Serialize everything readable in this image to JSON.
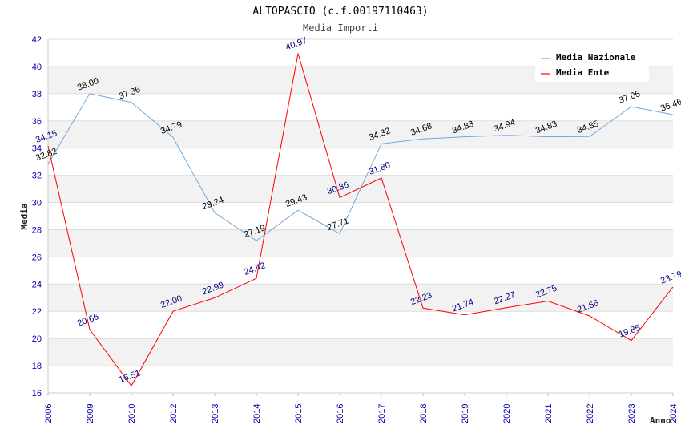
{
  "chart_data": {
    "type": "line",
    "title": "ALTOPASCIO (c.f.00197110463)",
    "subtitle": "Media Importi",
    "xlabel": "Anno",
    "ylabel": "Media",
    "ylim": [
      16,
      42
    ],
    "yticks": [
      "16",
      "18",
      "20",
      "22",
      "24",
      "26",
      "28",
      "30",
      "32",
      "34",
      "36",
      "38",
      "40",
      "42"
    ],
    "categories": [
      "2006",
      "2009",
      "2010",
      "2012",
      "2013",
      "2014",
      "2015",
      "2016",
      "2017",
      "2018",
      "2019",
      "2020",
      "2021",
      "2022",
      "2023",
      "2024"
    ],
    "legend_position": "top-right",
    "series": [
      {
        "name": "Media Nazionale",
        "color": "#6fa8dc",
        "values": [
          32.82,
          38.0,
          37.36,
          34.79,
          29.24,
          27.19,
          29.43,
          27.71,
          34.32,
          34.68,
          34.83,
          34.94,
          34.83,
          34.85,
          37.05,
          36.46
        ],
        "labels": [
          "32.82",
          "38.00",
          "37.36",
          "34.79",
          "29.24",
          "27.19",
          "29.43",
          "27.71",
          "34.32",
          "34.68",
          "34.83",
          "34.94",
          "34.83",
          "34.85",
          "37.05",
          "36.46"
        ]
      },
      {
        "name": "Media Ente",
        "color": "#ff0000",
        "values": [
          34.15,
          20.66,
          16.51,
          22.0,
          22.99,
          24.42,
          40.97,
          30.36,
          31.8,
          22.23,
          21.74,
          22.27,
          22.75,
          21.66,
          19.85,
          23.79
        ],
        "labels": [
          "34.15",
          "20.66",
          "16.51",
          "22.00",
          "22.99",
          "24.42",
          "40.97",
          "30.36",
          "31.80",
          "22.23",
          "21.74",
          "22.27",
          "22.75",
          "21.66",
          "19.85",
          "23.79"
        ]
      }
    ]
  }
}
